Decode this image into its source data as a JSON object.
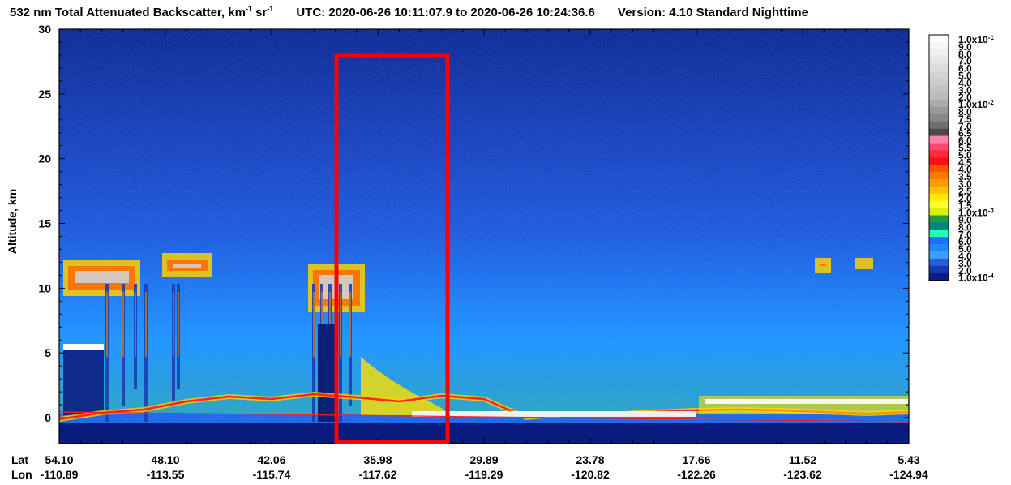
{
  "title": {
    "quantity": "532 nm Total Attenuated Backscatter, km",
    "exp1": "-1",
    "sr": " sr",
    "exp2": "-1",
    "utc": "UTC:  2020-06-26 10:11:07.9  to  2020-06-26 10:24:36.6",
    "version": "Version: 4.10  Standard  Nighttime"
  },
  "chart_data": {
    "type": "heatmap",
    "title": "532 nm Total Attenuated Backscatter, km-1 sr-1",
    "ylabel": "Altitude, km",
    "ylim": [
      -2,
      30
    ],
    "yticks": [
      0,
      5,
      10,
      15,
      20,
      25,
      30
    ],
    "x_axis_labels": {
      "lat_label": "Lat",
      "lon_label": "Lon",
      "lat": [
        "54.10",
        "48.10",
        "42.06",
        "35.98",
        "29.89",
        "23.78",
        "17.66",
        "11.52",
        "5.43"
      ],
      "lon": [
        "-110.89",
        "-113.55",
        "-115.74",
        "-117.62",
        "-119.29",
        "-120.82",
        "-122.26",
        "-123.62",
        "-124.94"
      ]
    },
    "colorbar": {
      "labels": [
        "1.0x10",
        "9.0",
        "8.0",
        "7.0",
        "6.0",
        "5.0",
        "4.0",
        "3.0",
        "2.0",
        "1.0x10",
        "8.0",
        "7.5",
        "7.0",
        "6.5",
        "6.0",
        "5.5",
        "5.0",
        "4.5",
        "4.0",
        "3.5",
        "3.0",
        "2.5",
        "2.0",
        "1.5",
        "1.0x10",
        "9.0",
        "8.0",
        "7.0",
        "6.0",
        "5.0",
        "4.0",
        "3.0",
        "2.0",
        "1.0x10"
      ],
      "exponents": {
        "0": "-1",
        "9": "-2",
        "24": "-3",
        "33": "-4"
      },
      "colors": [
        "#ffffff",
        "#f6f6f6",
        "#eeeeee",
        "#e6e6e6",
        "#dddddd",
        "#d4d4d4",
        "#cccccc",
        "#c3c3c3",
        "#bbbbbb",
        "#aaaaaa",
        "#999999",
        "#888888",
        "#6f6f6f",
        "#4a4a4a",
        "#ff7fa8",
        "#ff4a6e",
        "#ff2a3c",
        "#ff1010",
        "#ff5200",
        "#ff7800",
        "#ff9c00",
        "#ffc000",
        "#ffea00",
        "#ffff30",
        "#dcf000",
        "#1f9a4c",
        "#00857a",
        "#20ffb8",
        "#1e6eff",
        "#1e88ff",
        "#3aa0ff",
        "#2a5dd8",
        "#163caa",
        "#081c8a"
      ]
    },
    "overlays": {
      "highlight_box": {
        "lat_range": [
          "~38",
          "~32"
        ],
        "alt_range": [
          -1.5,
          28
        ],
        "color": "#ff0000"
      },
      "surface_line_color": "#ff2020"
    },
    "colors": {
      "background": "#0e2a9a",
      "aerosol": "#00c8ff",
      "cloud": "#ffffff"
    }
  }
}
